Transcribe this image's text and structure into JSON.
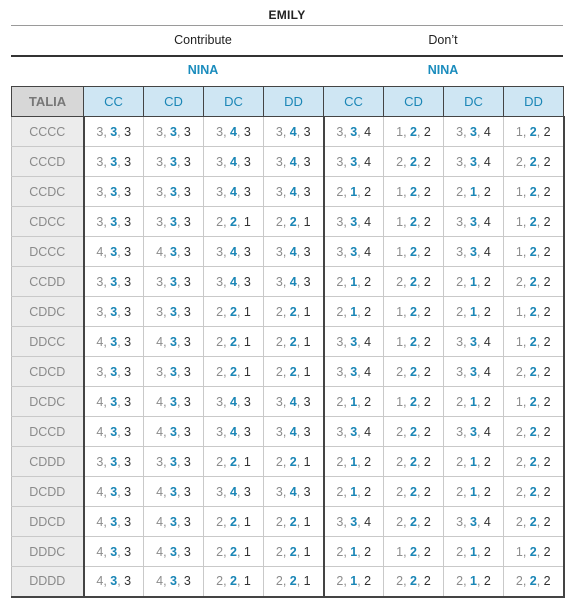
{
  "header": {
    "title": "EMILY",
    "emily_choices": [
      "Contribute",
      "Don’t"
    ],
    "nina_label": "NINA",
    "talia_label": "TALIA",
    "column_labels": [
      "CC",
      "CD",
      "DC",
      "DD",
      "CC",
      "CD",
      "DC",
      "DD"
    ]
  },
  "rows": [
    {
      "label": "CCCC",
      "cells": [
        "3,3,3",
        "3,3,3",
        "3,4,3",
        "3,4,3",
        "3,3,4",
        "1,2,2",
        "3,3,4",
        "1,2,2"
      ]
    },
    {
      "label": "CCCD",
      "cells": [
        "3,3,3",
        "3,3,3",
        "3,4,3",
        "3,4,3",
        "3,3,4",
        "2,2,2",
        "3,3,4",
        "2,2,2"
      ]
    },
    {
      "label": "CCDC",
      "cells": [
        "3,3,3",
        "3,3,3",
        "3,4,3",
        "3,4,3",
        "2,1,2",
        "1,2,2",
        "2,1,2",
        "1,2,2"
      ]
    },
    {
      "label": "CDCC",
      "cells": [
        "3,3,3",
        "3,3,3",
        "2,2,1",
        "2,2,1",
        "3,3,4",
        "1,2,2",
        "3,3,4",
        "1,2,2"
      ]
    },
    {
      "label": "DCCC",
      "cells": [
        "4,3,3",
        "4,3,3",
        "3,4,3",
        "3,4,3",
        "3,3,4",
        "1,2,2",
        "3,3,4",
        "1,2,2"
      ]
    },
    {
      "label": "CCDD",
      "cells": [
        "3,3,3",
        "3,3,3",
        "3,4,3",
        "3,4,3",
        "2,1,2",
        "2,2,2",
        "2,1,2",
        "2,2,2"
      ]
    },
    {
      "label": "CDDC",
      "cells": [
        "3,3,3",
        "3,3,3",
        "2,2,1",
        "2,2,1",
        "2,1,2",
        "1,2,2",
        "2,1,2",
        "1,2,2"
      ]
    },
    {
      "label": "DDCC",
      "cells": [
        "4,3,3",
        "4,3,3",
        "2,2,1",
        "2,2,1",
        "3,3,4",
        "1,2,2",
        "3,3,4",
        "1,2,2"
      ]
    },
    {
      "label": "CDCD",
      "cells": [
        "3,3,3",
        "3,3,3",
        "2,2,1",
        "2,2,1",
        "3,3,4",
        "2,2,2",
        "3,3,4",
        "2,2,2"
      ]
    },
    {
      "label": "DCDC",
      "cells": [
        "4,3,3",
        "4,3,3",
        "3,4,3",
        "3,4,3",
        "2,1,2",
        "1,2,2",
        "2,1,2",
        "1,2,2"
      ]
    },
    {
      "label": "DCCD",
      "cells": [
        "4,3,3",
        "4,3,3",
        "3,4,3",
        "3,4,3",
        "3,3,4",
        "2,2,2",
        "3,3,4",
        "2,2,2"
      ]
    },
    {
      "label": "CDDD",
      "cells": [
        "3,3,3",
        "3,3,3",
        "2,2,1",
        "2,2,1",
        "2,1,2",
        "2,2,2",
        "2,1,2",
        "2,2,2"
      ]
    },
    {
      "label": "DCDD",
      "cells": [
        "4,3,3",
        "4,3,3",
        "3,4,3",
        "3,4,3",
        "2,1,2",
        "2,2,2",
        "2,1,2",
        "2,2,2"
      ]
    },
    {
      "label": "DDCD",
      "cells": [
        "4,3,3",
        "4,3,3",
        "2,2,1",
        "2,2,1",
        "3,3,4",
        "2,2,2",
        "3,3,4",
        "2,2,2"
      ]
    },
    {
      "label": "DDDC",
      "cells": [
        "4,3,3",
        "4,3,3",
        "2,2,1",
        "2,2,1",
        "2,1,2",
        "1,2,2",
        "2,1,2",
        "1,2,2"
      ]
    },
    {
      "label": "DDDD",
      "cells": [
        "4,3,3",
        "4,3,3",
        "2,2,1",
        "2,2,1",
        "2,1,2",
        "2,2,2",
        "2,1,2",
        "2,2,2"
      ]
    }
  ],
  "colors": {
    "header_bg": "#cfe6f3",
    "accent_blue": "#1a86b6",
    "talia_header_bg": "#d7d7d7",
    "row_label_bg": "#ececec"
  }
}
